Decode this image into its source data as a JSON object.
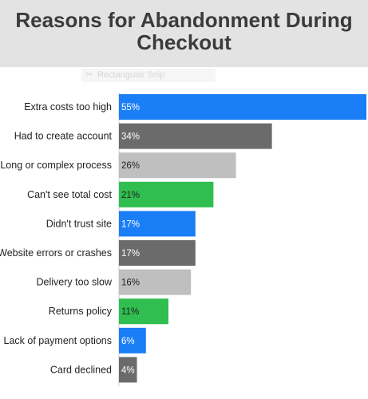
{
  "chart_data": {
    "type": "bar",
    "orientation": "horizontal",
    "title_line1": "Reasons for Abandonment During",
    "title_line2": "Checkout",
    "categories": [
      "Extra costs too high",
      "Had to create account",
      "Long or complex process",
      "Can't see total cost",
      "Didn't trust site",
      "Website errors or crashes",
      "Delivery too slow",
      "Returns policy",
      "Lack of payment options",
      "Card declined"
    ],
    "values": [
      55,
      34,
      26,
      21,
      17,
      17,
      16,
      11,
      6,
      4
    ],
    "value_labels": [
      "55%",
      "34%",
      "26%",
      "21%",
      "17%",
      "17%",
      "16%",
      "11%",
      "6%",
      "4%"
    ],
    "bar_colors": [
      "#1a7ef7",
      "#6b6b6b",
      "#bfbfbf",
      "#2fbe4f",
      "#1a7ef7",
      "#6b6b6b",
      "#bfbfbf",
      "#2fbe4f",
      "#1a7ef7",
      "#6b6b6b"
    ],
    "label_colors": [
      "#ffffff",
      "#ffffff",
      "#222222",
      "#222222",
      "#ffffff",
      "#ffffff",
      "#222222",
      "#222222",
      "#ffffff",
      "#ffffff"
    ],
    "x_ticks": [
      0,
      5,
      10,
      15,
      20,
      25,
      30,
      35,
      40,
      45,
      50,
      55
    ],
    "xlim": [
      0,
      55
    ],
    "grid": false,
    "legend": "none"
  },
  "overlay": {
    "snip_icon": "scissors-icon",
    "snip_label": "Rectangular Snip"
  }
}
